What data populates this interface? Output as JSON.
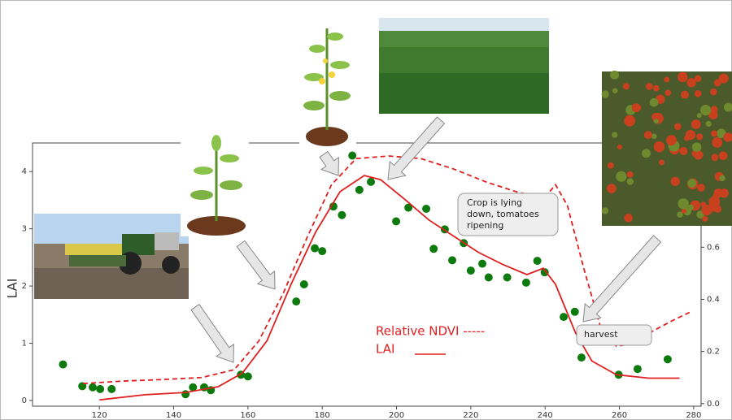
{
  "chart_data": {
    "type": "line",
    "y_label": "LAI",
    "xlim": [
      102,
      282
    ],
    "xticks": [
      120,
      140,
      160,
      180,
      200,
      220,
      240,
      260,
      280
    ],
    "ylim": [
      -0.1,
      4.5
    ],
    "yticks": [
      0,
      1,
      2,
      3,
      4
    ],
    "y2lim": [
      -0.01,
      1.0
    ],
    "y2ticks": [
      {
        "value": 0,
        "label": "0.0"
      },
      0.2,
      0.4,
      0.6
    ],
    "legend": [
      "Relative NDVI -----",
      "LAI"
    ],
    "annotations": [
      "Crop is lying down, tomatoes ripening",
      "harvest"
    ],
    "series": [
      {
        "type": "scatter",
        "color": "#0d7a0d",
        "x": [
          110.2,
          115.4,
          118.2,
          120.2,
          123.3,
          143.2,
          145.2,
          148.2,
          150,
          158.1,
          160,
          173,
          175.1,
          178,
          180,
          183,
          185.3,
          188.1,
          190,
          193.1,
          199.9,
          203.2,
          208,
          210,
          213,
          215,
          218.1,
          220,
          223.1,
          224.8,
          229.8,
          234.9,
          237.9,
          239.9,
          245,
          248,
          249.8,
          259.8,
          264.9,
          273
        ],
        "values": [
          0.63,
          0.25,
          0.23,
          0.2,
          0.2,
          0.11,
          0.23,
          0.23,
          0.18,
          0.45,
          0.42,
          1.73,
          2.03,
          2.66,
          2.61,
          3.39,
          3.24,
          4.28,
          3.68,
          3.82,
          3.13,
          3.37,
          3.35,
          2.65,
          2.99,
          2.45,
          2.75,
          2.27,
          2.39,
          2.15,
          2.15,
          2.06,
          2.44,
          2.24,
          1.46,
          1.55,
          0.75,
          0.45,
          0.55,
          0.72
        ]
      },
      {
        "type": "line",
        "color": "#e02020",
        "x": [
          120,
          132.3,
          143.2,
          152,
          158.5,
          165.1,
          171.6,
          178.2,
          184.8,
          191.3,
          195.7,
          202.3,
          208.8,
          215.4,
          222,
          228.5,
          235.1,
          239.5,
          242.8,
          248.2,
          252.6,
          259.2,
          267.9,
          276.2
        ],
        "values": [
          0.01,
          0.1,
          0.14,
          0.24,
          0.48,
          1.04,
          2.03,
          2.94,
          3.65,
          3.93,
          3.86,
          3.51,
          3.15,
          2.87,
          2.59,
          2.38,
          2.2,
          2.31,
          2.03,
          1.18,
          0.69,
          0.45,
          0.39,
          0.39
        ]
      },
      {
        "type": "line",
        "color": "#e02020",
        "dashed": true,
        "axis": "y2",
        "x": [
          115.6,
          125.7,
          136.6,
          147.6,
          156.3,
          162.9,
          169.4,
          176,
          182.5,
          189.1,
          197.9,
          206.6,
          215.4,
          224.2,
          232.9,
          239.9,
          242.8,
          246,
          250.4,
          254.8,
          259.2,
          263.5,
          267.9,
          274.5,
          278.9
        ],
        "values": [
          0.077,
          0.086,
          0.092,
          0.1,
          0.13,
          0.24,
          0.42,
          0.64,
          0.84,
          0.94,
          0.95,
          0.94,
          0.9,
          0.85,
          0.81,
          0.79,
          0.84,
          0.76,
          0.52,
          0.3,
          0.22,
          0.23,
          0.27,
          0.32,
          0.35
        ]
      }
    ]
  }
}
